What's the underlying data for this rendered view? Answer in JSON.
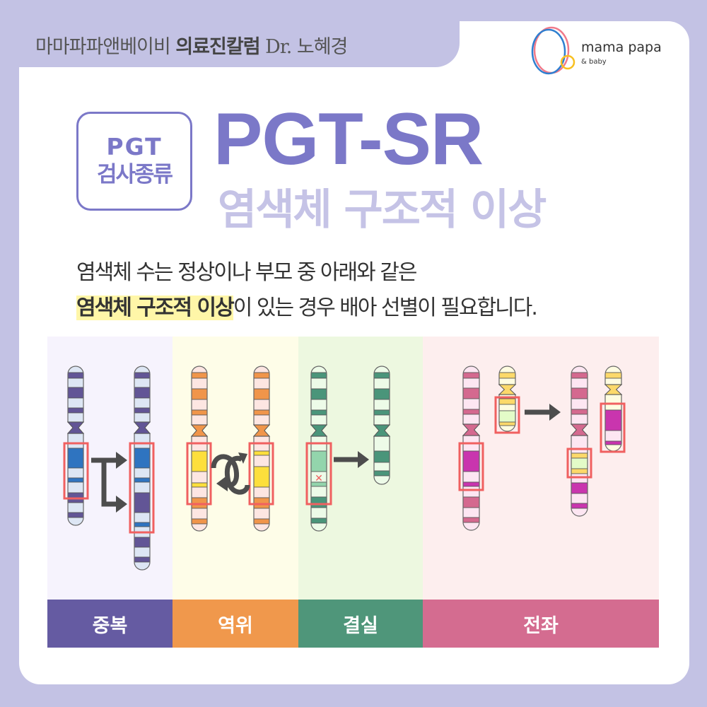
{
  "header": {
    "column_prefix": "마마파파앤베이비",
    "column_bold": "의료진칼럼",
    "author": "Dr. 노혜경"
  },
  "logo": {
    "main": "mama papa",
    "sub": "& baby",
    "colors": {
      "blue": "#2f7fd0",
      "pink": "#f07a8a",
      "yellow": "#f8c020"
    }
  },
  "badge": {
    "line1": "PGT",
    "line2": "검사종류"
  },
  "title": "PGT-SR",
  "subtitle": "염색체 구조적 이상",
  "description": {
    "line1": "염색체 수는 정상이나 부모 중 아래와 같은",
    "line2_highlight": "염색체 구조적 이상",
    "line2_rest": "이 있는 경우 배아 선별이 필요합니다."
  },
  "categories": [
    {
      "label": "중복",
      "color": "#655ba2",
      "bg": "#f6f3fd"
    },
    {
      "label": "역위",
      "color": "#f0984c",
      "bg": "#fefde8"
    },
    {
      "label": "결실",
      "color": "#4f967a",
      "bg": "#edf8e0"
    },
    {
      "label": "전좌",
      "color": "#d46c90",
      "bg": "#fdeeee"
    }
  ],
  "colors": {
    "accent": "#7b78c8",
    "highlight_box": "#f06060",
    "arrow": "#4d4d4d"
  }
}
